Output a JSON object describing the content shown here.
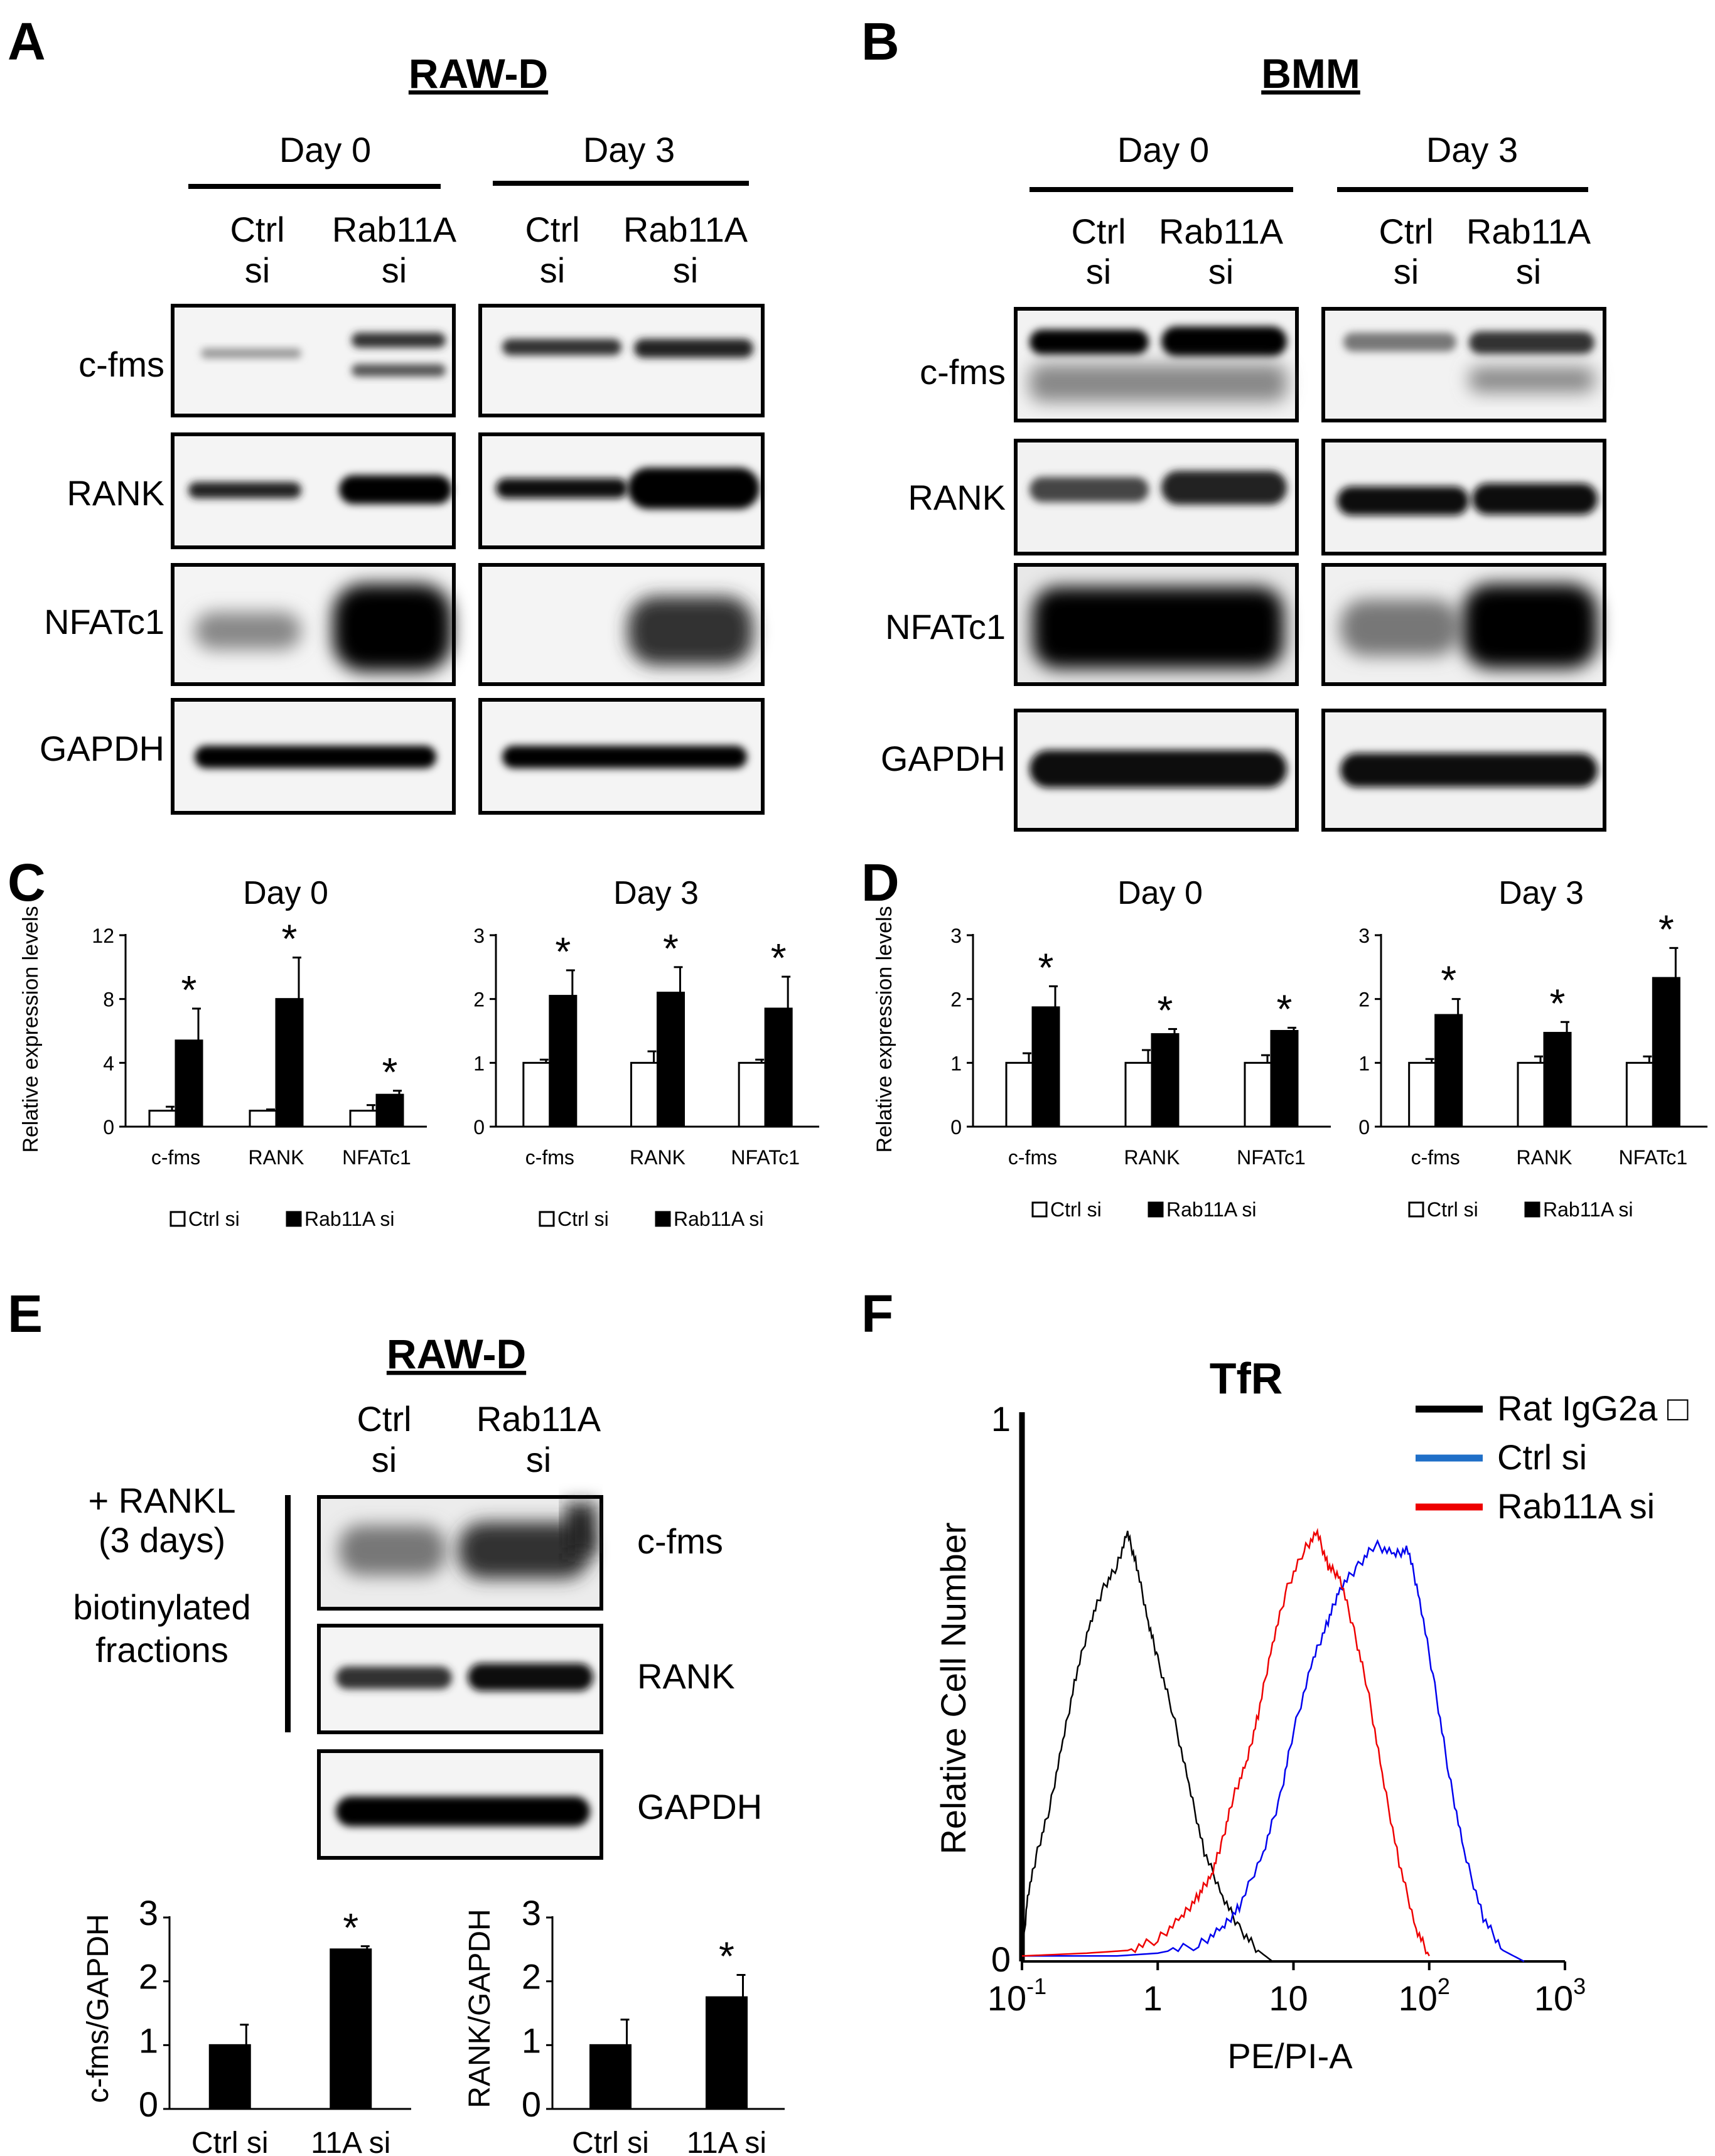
{
  "panelA": {
    "label": "A",
    "title": "RAW-D",
    "groups": [
      "Day 0",
      "Day 3"
    ],
    "lanes": [
      {
        "top": "Ctrl",
        "bottom": "si"
      },
      {
        "top": "Rab11A",
        "bottom": "si"
      },
      {
        "top": "Ctrl",
        "bottom": "si"
      },
      {
        "top": "Rab11A",
        "bottom": "si"
      }
    ],
    "rows": [
      "c-fms",
      "RANK",
      "NFATc1",
      "GAPDH"
    ]
  },
  "panelB": {
    "label": "B",
    "title": "BMM",
    "groups": [
      "Day 0",
      "Day 3"
    ],
    "lanes": [
      {
        "top": "Ctrl",
        "bottom": "si"
      },
      {
        "top": "Rab11A",
        "bottom": "si"
      },
      {
        "top": "Ctrl",
        "bottom": "si"
      },
      {
        "top": "Rab11A",
        "bottom": "si"
      }
    ],
    "rows": [
      "c-fms",
      "RANK",
      "NFATc1",
      "GAPDH"
    ]
  },
  "panelC": {
    "label": "C"
  },
  "panelD": {
    "label": "D"
  },
  "panelE": {
    "label": "E",
    "title": "RAW-D",
    "lanes": [
      {
        "top": "Ctrl",
        "bottom": "si"
      },
      {
        "top": "Rab11A",
        "bottom": "si"
      }
    ],
    "condition": [
      "+ RANKL",
      "(3 days)"
    ],
    "fraction": [
      "biotinylated",
      "fractions"
    ],
    "rows": [
      "c-fms",
      "RANK",
      "GAPDH"
    ]
  },
  "panelF": {
    "label": "F"
  },
  "chart_data": [
    {
      "id": "C-day0",
      "type": "bar",
      "title": "Day 0",
      "ylabel": "Relative expression levels",
      "categories": [
        "c-fms",
        "RANK",
        "NFATc1"
      ],
      "ylim": [
        0,
        12
      ],
      "yticks": [
        0,
        4,
        8,
        12
      ],
      "series": [
        {
          "name": "Ctrl si",
          "color": "#ffffff",
          "values": [
            1.0,
            1.0,
            1.0
          ],
          "errors": [
            0.25,
            0.08,
            0.35
          ]
        },
        {
          "name": "Rab11A si",
          "color": "#000000",
          "values": [
            5.4,
            8.0,
            2.0
          ],
          "errors": [
            2.0,
            2.6,
            0.25
          ]
        }
      ],
      "annotations": [
        "",
        "*",
        "",
        "*",
        "",
        "*"
      ],
      "legend": "bottom"
    },
    {
      "id": "C-day3",
      "type": "bar",
      "title": "Day 3",
      "ylabel": "",
      "categories": [
        "c-fms",
        "RANK",
        "NFATc1"
      ],
      "ylim": [
        0,
        3
      ],
      "yticks": [
        0,
        1,
        2,
        3
      ],
      "series": [
        {
          "name": "Ctrl si",
          "color": "#ffffff",
          "values": [
            1.0,
            1.0,
            1.0
          ],
          "errors": [
            0.05,
            0.18,
            0.05
          ]
        },
        {
          "name": "Rab11A si",
          "color": "#000000",
          "values": [
            2.05,
            2.1,
            1.85
          ],
          "errors": [
            0.4,
            0.4,
            0.5
          ]
        }
      ],
      "annotations": [
        "",
        "*",
        "",
        "*",
        "",
        "*"
      ],
      "legend": "bottom"
    },
    {
      "id": "D-day0",
      "type": "bar",
      "title": "Day 0",
      "ylabel": "Relative expression levels",
      "categories": [
        "c-fms",
        "RANK",
        "NFATc1"
      ],
      "ylim": [
        0,
        3
      ],
      "yticks": [
        0,
        1,
        2,
        3
      ],
      "series": [
        {
          "name": "Ctrl si",
          "color": "#ffffff",
          "values": [
            1.0,
            1.0,
            1.0
          ],
          "errors": [
            0.15,
            0.2,
            0.12
          ]
        },
        {
          "name": "Rab11A si",
          "color": "#000000",
          "values": [
            1.87,
            1.45,
            1.5
          ],
          "errors": [
            0.33,
            0.08,
            0.05
          ]
        }
      ],
      "annotations": [
        "",
        "*",
        "",
        "*",
        "",
        "*"
      ],
      "legend": "bottom"
    },
    {
      "id": "D-day3",
      "type": "bar",
      "title": "Day 3",
      "ylabel": "",
      "categories": [
        "c-fms",
        "RANK",
        "NFATc1"
      ],
      "ylim": [
        0,
        3
      ],
      "yticks": [
        0,
        1,
        2,
        3
      ],
      "series": [
        {
          "name": "Ctrl si",
          "color": "#ffffff",
          "values": [
            1.0,
            1.0,
            1.0
          ],
          "errors": [
            0.06,
            0.1,
            0.1
          ]
        },
        {
          "name": "Rab11A si",
          "color": "#000000",
          "values": [
            1.75,
            1.47,
            2.33
          ],
          "errors": [
            0.25,
            0.17,
            0.47
          ]
        }
      ],
      "annotations": [
        "",
        "*",
        "",
        "*",
        "",
        "*"
      ],
      "legend": "bottom"
    },
    {
      "id": "E-cfms",
      "type": "bar",
      "title": "",
      "ylabel": "c-fms/GAPDH",
      "categories": [
        "Ctrl si",
        "11A si"
      ],
      "ylim": [
        0,
        3
      ],
      "yticks": [
        0,
        1,
        2,
        3
      ],
      "series": [
        {
          "name": "",
          "color": "#000000",
          "values": [
            1.0,
            2.5
          ],
          "errors": [
            0.32,
            0.05
          ]
        }
      ],
      "annotations": [
        "",
        "*"
      ]
    },
    {
      "id": "E-rank",
      "type": "bar",
      "title": "",
      "ylabel": "RANK/GAPDH",
      "categories": [
        "Ctrl si",
        "11A si"
      ],
      "ylim": [
        0,
        3
      ],
      "yticks": [
        0,
        1,
        2,
        3
      ],
      "series": [
        {
          "name": "",
          "color": "#000000",
          "values": [
            1.0,
            1.75
          ],
          "errors": [
            0.4,
            0.35
          ]
        }
      ],
      "annotations": [
        "",
        "*"
      ]
    },
    {
      "id": "F",
      "type": "line",
      "title": "TfR",
      "xlabel": "PE/PI-A",
      "ylabel": "Relative Cell Number",
      "xscale": "log",
      "xlim": [
        0.1,
        1000
      ],
      "xticks": [
        {
          "v": 0.1,
          "base": "10",
          "exp": "-1"
        },
        {
          "v": 1,
          "base": "1",
          "exp": ""
        },
        {
          "v": 10,
          "base": "10",
          "exp": ""
        },
        {
          "v": 100,
          "base": "10",
          "exp": "2"
        },
        {
          "v": 1000,
          "base": "10",
          "exp": "3"
        }
      ],
      "ylim": [
        0,
        1
      ],
      "yticks": [
        0,
        1
      ],
      "legend": "top-right",
      "series": [
        {
          "name": "Rat IgG2a □",
          "color": "#000000",
          "legendColor": "#000000",
          "points": [
            [
              0.1,
              0.0
            ],
            [
              0.11,
              0.12
            ],
            [
              0.13,
              0.2
            ],
            [
              0.16,
              0.28
            ],
            [
              0.2,
              0.4
            ],
            [
              0.25,
              0.52
            ],
            [
              0.32,
              0.62
            ],
            [
              0.4,
              0.68
            ],
            [
              0.5,
              0.72
            ],
            [
              0.6,
              0.78
            ],
            [
              0.7,
              0.72
            ],
            [
              0.85,
              0.62
            ],
            [
              1.0,
              0.55
            ],
            [
              1.3,
              0.45
            ],
            [
              1.7,
              0.32
            ],
            [
              2.2,
              0.2
            ],
            [
              3.0,
              0.12
            ],
            [
              4.0,
              0.06
            ],
            [
              5.5,
              0.02
            ],
            [
              7.0,
              0.0
            ]
          ]
        },
        {
          "name": "Ctrl si",
          "color": "#0000ee",
          "legendColor": "#1f6fc8",
          "points": [
            [
              0.1,
              0.01
            ],
            [
              0.5,
              0.01
            ],
            [
              1.0,
              0.015
            ],
            [
              2.0,
              0.03
            ],
            [
              3.0,
              0.06
            ],
            [
              4.0,
              0.1
            ],
            [
              6.0,
              0.2
            ],
            [
              8.0,
              0.3
            ],
            [
              10.0,
              0.42
            ],
            [
              14.0,
              0.55
            ],
            [
              18.0,
              0.62
            ],
            [
              22.0,
              0.68
            ],
            [
              30.0,
              0.72
            ],
            [
              40.0,
              0.76
            ],
            [
              55.0,
              0.74
            ],
            [
              70.0,
              0.75
            ],
            [
              85.0,
              0.66
            ],
            [
              110.0,
              0.5
            ],
            [
              140.0,
              0.34
            ],
            [
              180.0,
              0.2
            ],
            [
              250.0,
              0.08
            ],
            [
              350.0,
              0.02
            ],
            [
              500.0,
              0.0
            ]
          ]
        },
        {
          "name": "Rab11A si",
          "color": "#ee0000",
          "legendColor": "#ee0000",
          "points": [
            [
              0.1,
              0.01
            ],
            [
              0.3,
              0.015
            ],
            [
              0.6,
              0.02
            ],
            [
              1.0,
              0.04
            ],
            [
              1.5,
              0.08
            ],
            [
              2.0,
              0.12
            ],
            [
              2.5,
              0.16
            ],
            [
              3.0,
              0.22
            ],
            [
              3.6,
              0.3
            ],
            [
              4.5,
              0.36
            ],
            [
              5.5,
              0.45
            ],
            [
              7.0,
              0.58
            ],
            [
              9.0,
              0.68
            ],
            [
              12.0,
              0.75
            ],
            [
              15.0,
              0.78
            ],
            [
              18.0,
              0.72
            ],
            [
              22.0,
              0.7
            ],
            [
              28.0,
              0.6
            ],
            [
              35.0,
              0.5
            ],
            [
              45.0,
              0.34
            ],
            [
              60.0,
              0.18
            ],
            [
              80.0,
              0.06
            ],
            [
              100.0,
              0.01
            ]
          ]
        }
      ]
    }
  ]
}
